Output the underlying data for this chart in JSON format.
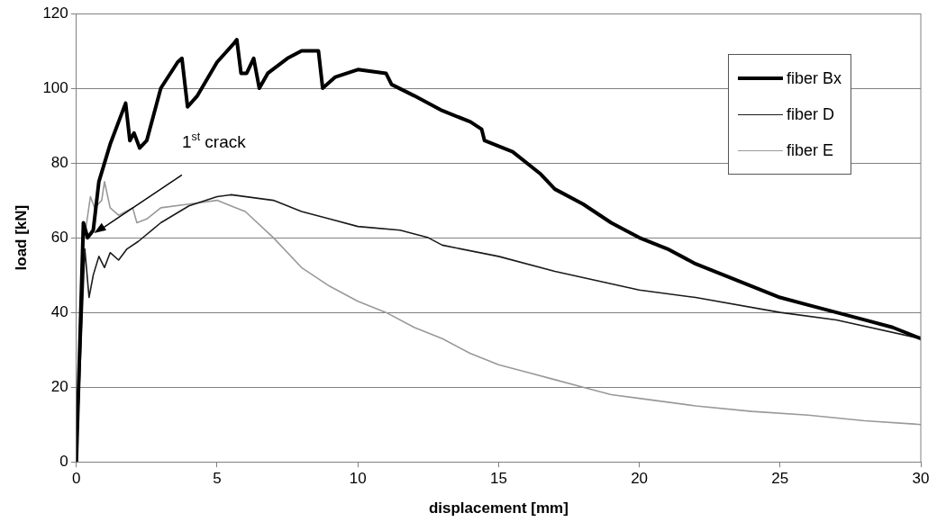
{
  "chart_data": {
    "type": "line",
    "xlabel": "displacement [mm]",
    "ylabel": "load [kN]",
    "xlim": [
      0,
      30
    ],
    "xticks": [
      0,
      5,
      10,
      15,
      20,
      25,
      30
    ],
    "ylim": [
      0,
      120
    ],
    "yticks": [
      0,
      20,
      40,
      60,
      80,
      100,
      120
    ],
    "grid": "y",
    "legend": "top right",
    "marker": "none",
    "line_style": "solid",
    "annotations": [
      "1$^{st}$ crack"
    ],
    "series": [
      {
        "name": "fiber Bx",
        "color": "#000000",
        "x": [
          0,
          0.25,
          0.4,
          0.6,
          0.8,
          1.2,
          1.6,
          1.75,
          1.9,
          2.05,
          2.25,
          2.5,
          3,
          3.6,
          3.75,
          3.95,
          4.3,
          5,
          5.6,
          5.7,
          5.85,
          6.05,
          6.3,
          6.5,
          6.8,
          7.5,
          8,
          8.6,
          8.75,
          9.2,
          10,
          11,
          11.2,
          12,
          13,
          14,
          14.4,
          14.5,
          15.5,
          16.5,
          17,
          18,
          19,
          20,
          21,
          22,
          23,
          24,
          25,
          26,
          27,
          28,
          29,
          30
        ],
        "values": [
          0,
          64,
          60,
          62,
          75,
          85,
          93,
          96,
          86,
          88,
          84,
          86,
          100,
          107,
          108,
          95,
          98,
          107,
          112,
          113,
          104,
          104,
          108,
          100,
          104,
          108,
          110,
          110,
          100,
          103,
          105,
          104,
          101,
          98,
          94,
          91,
          89,
          86,
          83,
          77,
          73,
          69,
          64,
          60,
          57,
          53,
          50,
          47,
          44,
          42,
          40,
          38,
          36,
          33
        ]
      },
      {
        "name": "fiber D",
        "color": "#1a1a1a",
        "x": [
          0,
          0.3,
          0.45,
          0.6,
          0.8,
          1,
          1.2,
          1.5,
          1.8,
          2.2,
          3,
          4,
          5,
          5.5,
          7,
          8,
          9,
          10,
          11.5,
          12.5,
          13,
          15,
          17,
          20,
          22,
          25,
          27,
          30
        ],
        "values": [
          0,
          57,
          44,
          50,
          55,
          52,
          56,
          54,
          57,
          59,
          64,
          68.5,
          71,
          71.5,
          70,
          67,
          65,
          63,
          62,
          60,
          58,
          55,
          51,
          46,
          44,
          40,
          38,
          33
        ]
      },
      {
        "name": "fiber E",
        "color": "#999999",
        "x": [
          0,
          0.25,
          0.5,
          0.65,
          0.9,
          1.0,
          1.2,
          1.5,
          2.0,
          2.15,
          2.5,
          3,
          4,
          5,
          6,
          7,
          8,
          9,
          10,
          11,
          12,
          13,
          14,
          15,
          16,
          17,
          18,
          19,
          20,
          22,
          24,
          26,
          28,
          30
        ],
        "values": [
          0,
          58,
          71,
          68,
          70,
          75,
          68,
          66,
          68,
          64,
          65,
          68,
          69,
          70,
          67,
          60,
          52,
          47,
          43,
          40,
          36,
          33,
          29,
          26,
          24,
          22,
          20,
          18,
          17,
          15,
          13.5,
          12.5,
          11,
          10
        ]
      }
    ]
  }
}
